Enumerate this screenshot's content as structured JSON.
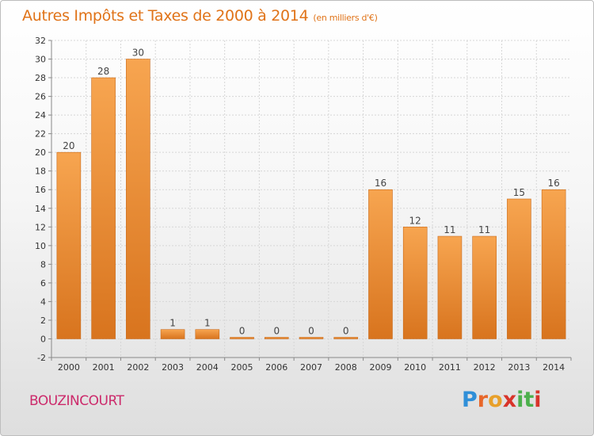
{
  "title": "Autres Impôts et Taxes de 2000 à 2014",
  "subtitle": "(en milliers d'€)",
  "commune": "BOUZINCOURT",
  "logo": {
    "letters": [
      "P",
      "r",
      "o",
      "x",
      "i",
      "t",
      "i"
    ],
    "colors": [
      "#2f8fd8",
      "#e8672a",
      "#e8a02a",
      "#d8342a",
      "#4cb04c",
      "#4cb04c",
      "#d8342a"
    ]
  },
  "colors": {
    "accent": "#e07318",
    "commune": "#cc2a6b",
    "bar_light": "#f7a550",
    "bar_dark": "#d8741e"
  },
  "chart_data": {
    "type": "bar",
    "categories": [
      "2000",
      "2001",
      "2002",
      "2003",
      "2004",
      "2005",
      "2006",
      "2007",
      "2008",
      "2009",
      "2010",
      "2011",
      "2012",
      "2013",
      "2014"
    ],
    "values": [
      20,
      28,
      30,
      1,
      1,
      0,
      0,
      0,
      0,
      16,
      12,
      11,
      11,
      15,
      16
    ],
    "data_labels": [
      "20",
      "28",
      "30",
      "1",
      "1",
      "0",
      "0",
      "0",
      "0",
      "16",
      "12",
      "11",
      "11",
      "15",
      "16"
    ],
    "title": "Autres Impôts et Taxes de 2000 à 2014",
    "ylim": [
      -2,
      32
    ],
    "yticks": [
      "-2",
      "0",
      "2",
      "4",
      "6",
      "8",
      "10",
      "12",
      "14",
      "16",
      "18",
      "20",
      "22",
      "24",
      "26",
      "28",
      "30",
      "32"
    ],
    "grid": true
  }
}
